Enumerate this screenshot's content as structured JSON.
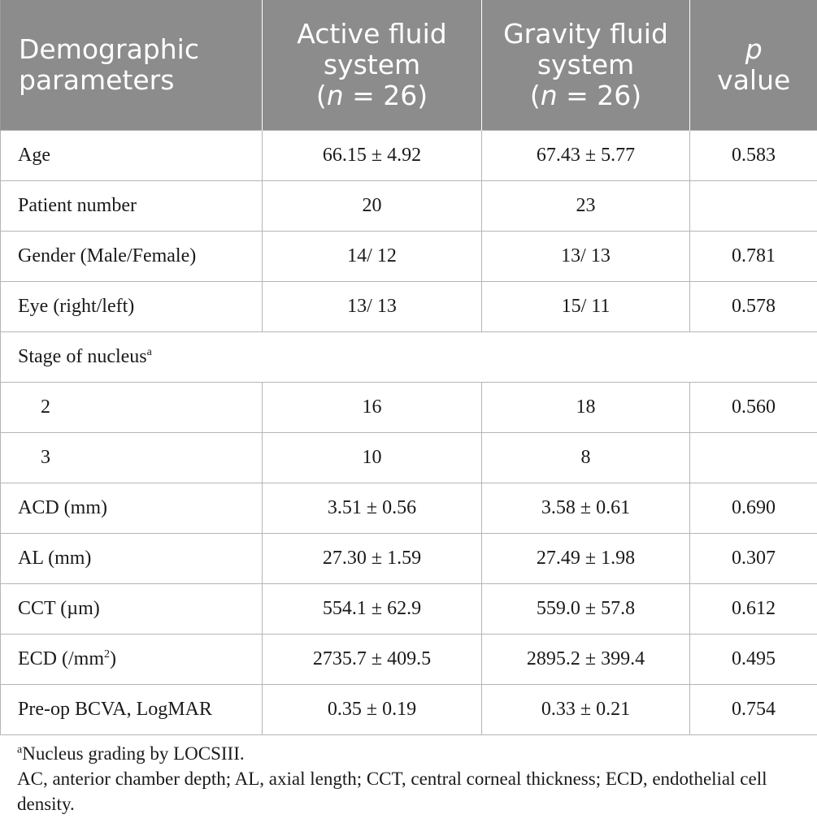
{
  "table": {
    "headers": [
      {
        "text": "Demographic parameters"
      },
      {
        "line1": "Active fluid system",
        "n_var": "n",
        "n_rest": " = 26)"
      },
      {
        "line1": "Gravity fluid system",
        "n_var": "n",
        "n_rest": " = 26)"
      },
      {
        "p_var": "p",
        "p_rest": "value"
      }
    ],
    "rows": {
      "age": [
        "Age",
        "66.15 ± 4.92",
        "67.43 ± 5.77",
        "0.583"
      ],
      "patient_number": [
        "Patient number",
        "20",
        "23",
        ""
      ],
      "gender": [
        "Gender (Male/Female)",
        "14/ 12",
        "13/ 13",
        "0.781"
      ],
      "eye": [
        "Eye (right/left)",
        "13/ 13",
        "15/ 11",
        "0.578"
      ],
      "stage_label": "Stage of nucleus",
      "stage_sup": "a",
      "stage2": [
        "2",
        "16",
        "18",
        "0.560"
      ],
      "stage3": [
        "3",
        "10",
        "8",
        ""
      ],
      "acd": [
        "ACD (mm)",
        "3.51 ± 0.56",
        "3.58 ± 0.61",
        "0.690"
      ],
      "al": [
        "AL (mm)",
        "27.30 ± 1.59",
        "27.49 ± 1.98",
        "0.307"
      ],
      "cct": [
        "CCT (µm)",
        "554.1 ± 62.9",
        "559.0 ± 57.8",
        "0.612"
      ],
      "ecd_label": "ECD (/mm",
      "ecd_sup": "2",
      "ecd_label_end": ")",
      "ecd": [
        "2735.7 ± 409.5",
        "2895.2 ± 399.4",
        "0.495"
      ],
      "bcva": [
        "Pre-op BCVA, LogMAR",
        "0.35 ± 0.19",
        "0.33 ± 0.21",
        "0.754"
      ]
    }
  },
  "footnotes": {
    "a_sup": "a",
    "a_text": "Nucleus grading by LOCSIII.",
    "abbreviations": "AC, anterior chamber depth; AL, axial length; CCT, central corneal thickness; ECD, endothelial cell density."
  }
}
